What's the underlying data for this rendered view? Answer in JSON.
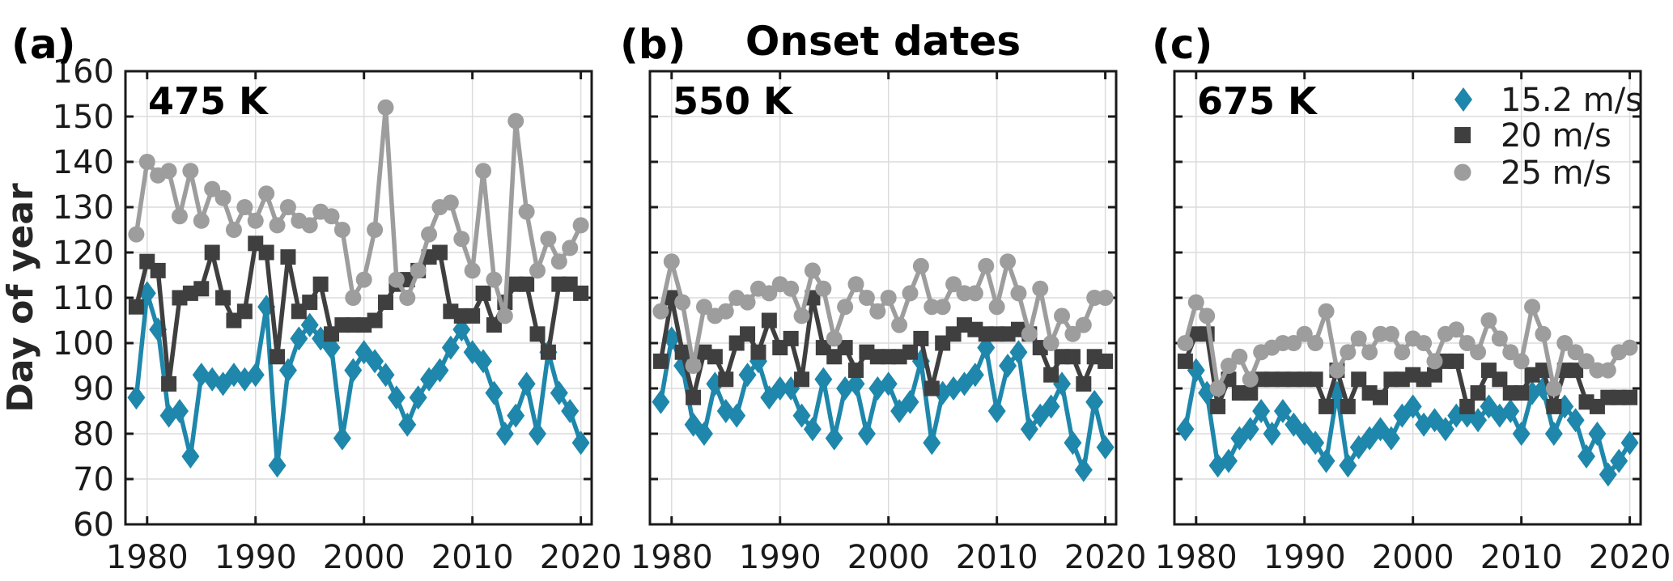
{
  "figure_title": "Onset dates",
  "panel_letters": [
    "(a)",
    "(b)",
    "(c)"
  ],
  "ylabel": "Day of year",
  "colors": {
    "teal": "#1e87ab",
    "dark_gray": "#3f3f3f",
    "light_gray": "#9d9d9d",
    "grid": "#dcdcdc",
    "axis": "#1a1a1a",
    "text": "#000000"
  },
  "legend": {
    "items": [
      {
        "label": "15.2 m/s",
        "marker": "diamond-icon",
        "color_key": "teal"
      },
      {
        "label": "20 m/s",
        "marker": "square-icon",
        "color_key": "dark_gray"
      },
      {
        "label": "25 m/s",
        "marker": "circle-icon",
        "color_key": "light_gray"
      }
    ]
  },
  "axes": {
    "xlim": [
      1978,
      2021
    ],
    "ylim": [
      60,
      160
    ],
    "xticks": [
      1980,
      1990,
      2000,
      2010,
      2020
    ],
    "yticks": [
      60,
      70,
      80,
      90,
      100,
      110,
      120,
      130,
      140,
      150,
      160
    ],
    "grid": true
  },
  "chart_data": [
    {
      "type": "line",
      "title": "475 K",
      "xlabel": "",
      "ylabel": "Day of year",
      "ylim": [
        60,
        160
      ],
      "x": [
        1979,
        1980,
        1981,
        1982,
        1983,
        1984,
        1985,
        1986,
        1987,
        1988,
        1989,
        1990,
        1991,
        1992,
        1993,
        1994,
        1995,
        1996,
        1997,
        1998,
        1999,
        2000,
        2001,
        2002,
        2003,
        2004,
        2005,
        2006,
        2007,
        2008,
        2009,
        2010,
        2011,
        2012,
        2013,
        2014,
        2015,
        2016,
        2017,
        2018,
        2019,
        2020
      ],
      "series": [
        {
          "name": "15.2 m/s",
          "marker": "diamond",
          "color_key": "teal",
          "values": [
            88,
            111,
            103,
            84,
            85,
            75,
            93,
            92,
            91,
            93,
            92,
            93,
            108,
            73,
            94,
            101,
            104,
            101,
            99,
            79,
            94,
            98,
            96,
            93,
            88,
            82,
            88,
            92,
            94,
            99,
            103,
            98,
            96,
            89,
            80,
            84,
            91,
            80,
            98,
            89,
            85,
            78
          ]
        },
        {
          "name": "20 m/s",
          "marker": "square",
          "color_key": "dark_gray",
          "values": [
            108,
            118,
            116,
            91,
            110,
            111,
            112,
            120,
            110,
            105,
            107,
            122,
            120,
            97,
            119,
            107,
            109,
            113,
            102,
            104,
            104,
            104,
            105,
            109,
            113,
            114,
            116,
            119,
            120,
            107,
            106,
            106,
            111,
            104,
            109,
            113,
            113,
            102,
            98,
            113,
            113,
            111
          ]
        },
        {
          "name": "25 m/s",
          "marker": "circle",
          "color_key": "light_gray",
          "values": [
            124,
            140,
            137,
            138,
            128,
            138,
            127,
            134,
            132,
            125,
            130,
            127,
            133,
            126,
            130,
            127,
            126,
            129,
            128,
            125,
            110,
            114,
            125,
            152,
            114,
            110,
            116,
            124,
            130,
            131,
            123,
            116,
            138,
            114,
            106,
            149,
            129,
            116,
            123,
            118,
            121,
            126
          ]
        }
      ]
    },
    {
      "type": "line",
      "title": "550 K",
      "xlabel": "",
      "ylabel": "Day of year",
      "ylim": [
        60,
        160
      ],
      "x": [
        1979,
        1980,
        1981,
        1982,
        1983,
        1984,
        1985,
        1986,
        1987,
        1988,
        1989,
        1990,
        1991,
        1992,
        1993,
        1994,
        1995,
        1996,
        1997,
        1998,
        1999,
        2000,
        2001,
        2002,
        2003,
        2004,
        2005,
        2006,
        2007,
        2008,
        2009,
        2010,
        2011,
        2012,
        2013,
        2014,
        2015,
        2016,
        2017,
        2018,
        2019,
        2020
      ],
      "series": [
        {
          "name": "15.2 m/s",
          "marker": "diamond",
          "color_key": "teal",
          "values": [
            87,
            101,
            95,
            82,
            80,
            91,
            85,
            84,
            93,
            96,
            88,
            90,
            90,
            84,
            81,
            92,
            79,
            90,
            91,
            80,
            90,
            91,
            85,
            87,
            96,
            78,
            89,
            90,
            91,
            93,
            99,
            85,
            95,
            98,
            81,
            84,
            86,
            91,
            78,
            72,
            87,
            77
          ]
        },
        {
          "name": "20 m/s",
          "marker": "square",
          "color_key": "dark_gray",
          "values": [
            96,
            110,
            98,
            88,
            98,
            97,
            92,
            100,
            102,
            98,
            105,
            99,
            101,
            92,
            110,
            99,
            97,
            99,
            94,
            98,
            97,
            97,
            97,
            98,
            101,
            90,
            100,
            102,
            104,
            103,
            102,
            102,
            102,
            103,
            102,
            99,
            93,
            97,
            97,
            91,
            97,
            96
          ]
        },
        {
          "name": "25 m/s",
          "marker": "circle",
          "color_key": "light_gray",
          "values": [
            107,
            118,
            109,
            95,
            108,
            106,
            107,
            110,
            109,
            112,
            111,
            113,
            112,
            106,
            116,
            112,
            101,
            108,
            113,
            110,
            107,
            110,
            104,
            111,
            117,
            108,
            108,
            113,
            111,
            111,
            117,
            108,
            118,
            111,
            102,
            112,
            100,
            106,
            102,
            104,
            110,
            110
          ]
        }
      ]
    },
    {
      "type": "line",
      "title": "675 K",
      "xlabel": "",
      "ylabel": "Day of year",
      "ylim": [
        60,
        160
      ],
      "x": [
        1979,
        1980,
        1981,
        1982,
        1983,
        1984,
        1985,
        1986,
        1987,
        1988,
        1989,
        1990,
        1991,
        1992,
        1993,
        1994,
        1995,
        1996,
        1997,
        1998,
        1999,
        2000,
        2001,
        2002,
        2003,
        2004,
        2005,
        2006,
        2007,
        2008,
        2009,
        2010,
        2011,
        2012,
        2013,
        2014,
        2015,
        2016,
        2017,
        2018,
        2019,
        2020
      ],
      "series": [
        {
          "name": "15.2 m/s",
          "marker": "diamond",
          "color_key": "teal",
          "values": [
            81,
            94,
            89,
            73,
            74,
            79,
            81,
            85,
            80,
            85,
            82,
            80,
            78,
            74,
            89,
            73,
            77,
            79,
            81,
            79,
            84,
            86,
            82,
            83,
            81,
            84,
            84,
            83,
            86,
            84,
            85,
            80,
            89,
            90,
            80,
            86,
            83,
            75,
            80,
            71,
            74,
            78
          ]
        },
        {
          "name": "20 m/s",
          "marker": "square",
          "color_key": "dark_gray",
          "values": [
            96,
            102,
            102,
            86,
            92,
            89,
            89,
            92,
            92,
            92,
            92,
            92,
            92,
            86,
            94,
            86,
            92,
            89,
            88,
            92,
            92,
            93,
            92,
            93,
            96,
            96,
            86,
            89,
            94,
            92,
            89,
            89,
            93,
            94,
            86,
            94,
            94,
            87,
            86,
            88,
            88,
            88
          ]
        },
        {
          "name": "25 m/s",
          "marker": "circle",
          "color_key": "light_gray",
          "values": [
            100,
            109,
            106,
            90,
            95,
            97,
            92,
            98,
            99,
            100,
            100,
            102,
            100,
            107,
            94,
            98,
            101,
            98,
            102,
            102,
            98,
            101,
            100,
            96,
            102,
            103,
            100,
            98,
            105,
            101,
            98,
            96,
            108,
            102,
            90,
            100,
            98,
            96,
            94,
            94,
            98,
            99
          ]
        }
      ]
    }
  ]
}
